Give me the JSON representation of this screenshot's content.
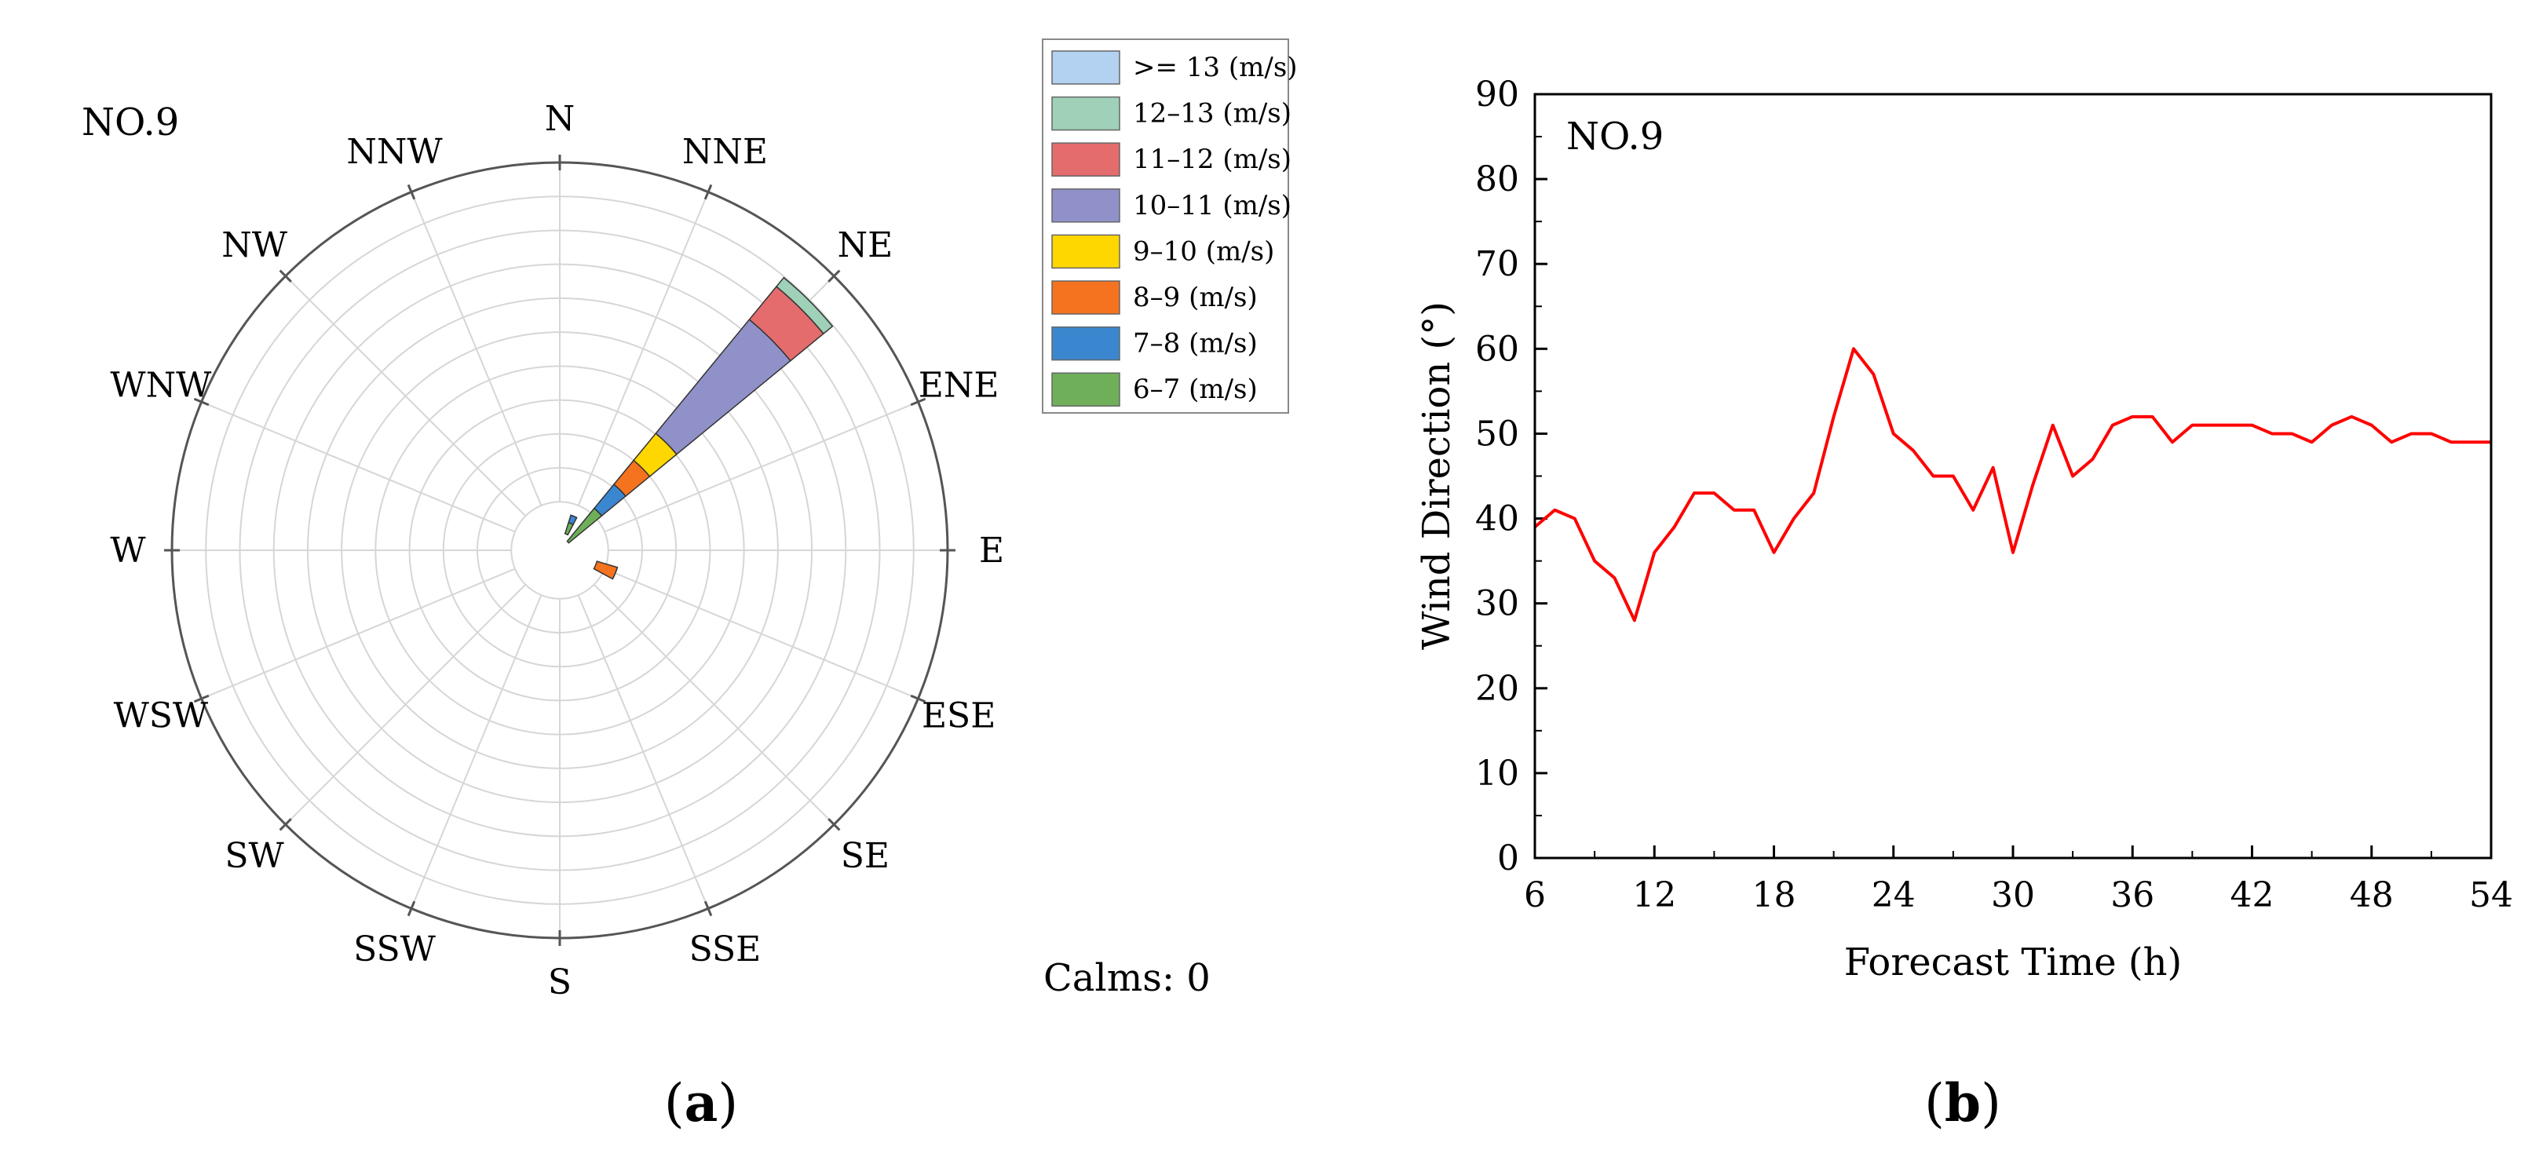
{
  "chart_data": [
    {
      "type": "polar-bar",
      "panel_label": {
        "open": "(",
        "letter": "a",
        "close": ")"
      },
      "title": "NO.9",
      "directions": [
        "N",
        "NNE",
        "NE",
        "ENE",
        "E",
        "ESE",
        "SE",
        "SSE",
        "S",
        "SSW",
        "SW",
        "WSW",
        "W",
        "WNW",
        "NW",
        "NNW"
      ],
      "legend": [
        {
          "label": ">= 13 (m/s)",
          "color": "#b3d1f0"
        },
        {
          "label": "12–13 (m/s)",
          "color": "#9fd0b8"
        },
        {
          "label": "11–12 (m/s)",
          "color": "#e46c6c"
        },
        {
          "label": "10–11 (m/s)",
          "color": "#9191c9"
        },
        {
          "label": "9–10 (m/s)",
          "color": "#ffd700"
        },
        {
          "label": "8–9 (m/s)",
          "color": "#f5731f"
        },
        {
          "label": "7–8 (m/s)",
          "color": "#3b87cf"
        },
        {
          "label": "6–7 (m/s)",
          "color": "#6faf5a"
        }
      ],
      "rings": 10,
      "inner_hole_fraction": 0.125,
      "sectors": [
        {
          "center_deg": 22.5,
          "half_width_deg": 5,
          "stacks": [
            {
              "bin": "6–7 (m/s)",
              "from": 0.045,
              "to": 0.075,
              "color": "#6faf5a"
            },
            {
              "bin": "7–8 (m/s)",
              "from": 0.075,
              "to": 0.095,
              "color": "#3b87cf"
            }
          ]
        },
        {
          "center_deg": 45,
          "half_width_deg": 5.6,
          "stacks": [
            {
              "bin": "6–7 (m/s)",
              "from": 0.03,
              "to": 0.14,
              "color": "#6faf5a"
            },
            {
              "bin": "7–8 (m/s)",
              "from": 0.14,
              "to": 0.22,
              "color": "#3b87cf"
            },
            {
              "bin": "8–9 (m/s)",
              "from": 0.22,
              "to": 0.3,
              "color": "#f5731f"
            },
            {
              "bin": "9–10 (m/s)",
              "from": 0.3,
              "to": 0.39,
              "color": "#ffd700"
            },
            {
              "bin": "10–11 (m/s)",
              "from": 0.39,
              "to": 0.77,
              "color": "#9191c9"
            },
            {
              "bin": "11–12 (m/s)",
              "from": 0.77,
              "to": 0.88,
              "color": "#e46c6c"
            },
            {
              "bin": "12–13 (m/s)",
              "from": 0.88,
              "to": 0.91,
              "color": "#9fd0b8"
            }
          ]
        },
        {
          "center_deg": 112.5,
          "half_width_deg": 6,
          "stacks": [
            {
              "bin": "8–9 (m/s)",
              "from": 0.1,
              "to": 0.155,
              "color": "#f5731f"
            }
          ]
        }
      ],
      "calms_label": "Calms: 0"
    },
    {
      "type": "line",
      "panel_label": {
        "open": "(",
        "letter": "b",
        "close": ")"
      },
      "title": "NO.9",
      "xlabel": "Forecast Time (h)",
      "ylabel": "Wind Direction (°)",
      "xlim": [
        6,
        54
      ],
      "ylim": [
        0,
        90
      ],
      "xticks": [
        "6",
        "12",
        "18",
        "24",
        "30",
        "36",
        "42",
        "48",
        "54"
      ],
      "yticks": [
        "0",
        "10",
        "20",
        "30",
        "40",
        "50",
        "60",
        "70",
        "80",
        "90"
      ],
      "series": [
        {
          "name": "NO.9",
          "color": "#ff0000",
          "x": [
            6,
            7,
            8,
            9,
            10,
            11,
            12,
            13,
            14,
            15,
            16,
            17,
            18,
            19,
            20,
            21,
            22,
            23,
            24,
            25,
            26,
            27,
            28,
            29,
            30,
            31,
            32,
            33,
            34,
            35,
            36,
            37,
            38,
            39,
            40,
            41,
            42,
            43,
            44,
            45,
            46,
            47,
            48,
            49,
            50,
            51,
            52,
            53,
            54
          ],
          "y": [
            39,
            41,
            40,
            35,
            33,
            28,
            36,
            39,
            43,
            43,
            41,
            41,
            36,
            40,
            43,
            52,
            60,
            57,
            50,
            48,
            45,
            45,
            41,
            46,
            36,
            44,
            51,
            45,
            47,
            51,
            52,
            52,
            49,
            51,
            51,
            51,
            51,
            50,
            50,
            49,
            51,
            52,
            51,
            49,
            50,
            50,
            49,
            49,
            49
          ]
        }
      ]
    }
  ]
}
